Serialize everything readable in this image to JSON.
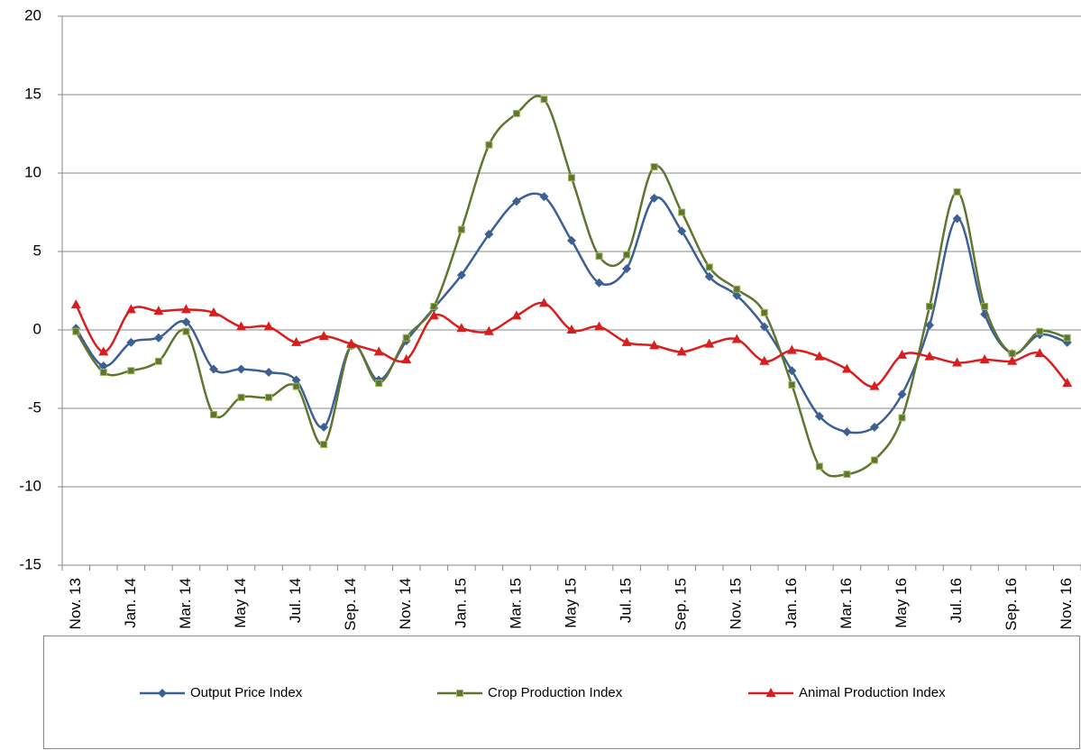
{
  "chart_data": {
    "type": "line",
    "categories": [
      "Nov. 13",
      null,
      "Jan. 14",
      null,
      "Mar. 14",
      null,
      "May 14",
      null,
      "Jul. 14",
      null,
      "Sep. 14",
      null,
      "Nov. 14",
      null,
      "Jan. 15",
      null,
      "Mar. 15",
      null,
      "May 15",
      null,
      "Jul. 15",
      null,
      "Sep. 15",
      null,
      "Nov. 15",
      null,
      "Jan. 16",
      null,
      "Mar. 16",
      null,
      "May 16",
      null,
      "Jul. 16",
      null,
      "Sep. 16",
      null,
      "Nov. 16"
    ],
    "series": [
      {
        "name": "Output Price Index",
        "color": "#3c5f94",
        "marker": "diamond",
        "values": [
          0.1,
          -2.3,
          -0.8,
          -0.5,
          0.5,
          -2.5,
          -2.5,
          -2.7,
          -3.2,
          -6.2,
          -1.0,
          -3.2,
          -0.7,
          1.4,
          3.5,
          6.1,
          8.2,
          8.5,
          5.7,
          3.0,
          3.9,
          8.4,
          6.3,
          3.4,
          2.2,
          0.2,
          -2.6,
          -5.5,
          -6.5,
          -6.2,
          -4.1,
          0.3,
          7.1,
          1.0,
          -1.5,
          -0.3,
          -0.8
        ]
      },
      {
        "name": "Crop Production Index",
        "color": "#5f7530",
        "marker": "square",
        "values": [
          -0.1,
          -2.7,
          -2.6,
          -2.0,
          -0.1,
          -5.4,
          -4.3,
          -4.3,
          -3.6,
          -7.3,
          -1.0,
          -3.4,
          -0.5,
          1.5,
          6.4,
          11.8,
          13.8,
          14.7,
          9.7,
          4.7,
          4.8,
          10.4,
          7.5,
          4.0,
          2.6,
          1.1,
          -3.5,
          -8.7,
          -9.2,
          -8.3,
          -5.6,
          1.5,
          8.8,
          1.5,
          -1.5,
          -0.1,
          -0.5
        ]
      },
      {
        "name": "Animal Production Index",
        "color": "#d81e1e",
        "marker": "triangle",
        "values": [
          1.6,
          -1.4,
          1.3,
          1.2,
          1.3,
          1.1,
          0.2,
          0.2,
          -0.8,
          -0.4,
          -0.9,
          -1.4,
          -1.9,
          0.9,
          0.1,
          -0.1,
          0.9,
          1.7,
          0.0,
          0.2,
          -0.8,
          -1.0,
          -1.4,
          -0.9,
          -0.6,
          -2.0,
          -1.3,
          -1.7,
          -2.5,
          -3.6,
          -1.6,
          -1.7,
          -2.1,
          -1.9,
          -2.0,
          -1.5,
          -3.4
        ]
      }
    ],
    "ylim": [
      -15,
      20
    ],
    "yticks": [
      -15,
      -10,
      -5,
      0,
      5,
      10,
      15,
      20
    ],
    "grid": true,
    "legend": "bottom"
  }
}
